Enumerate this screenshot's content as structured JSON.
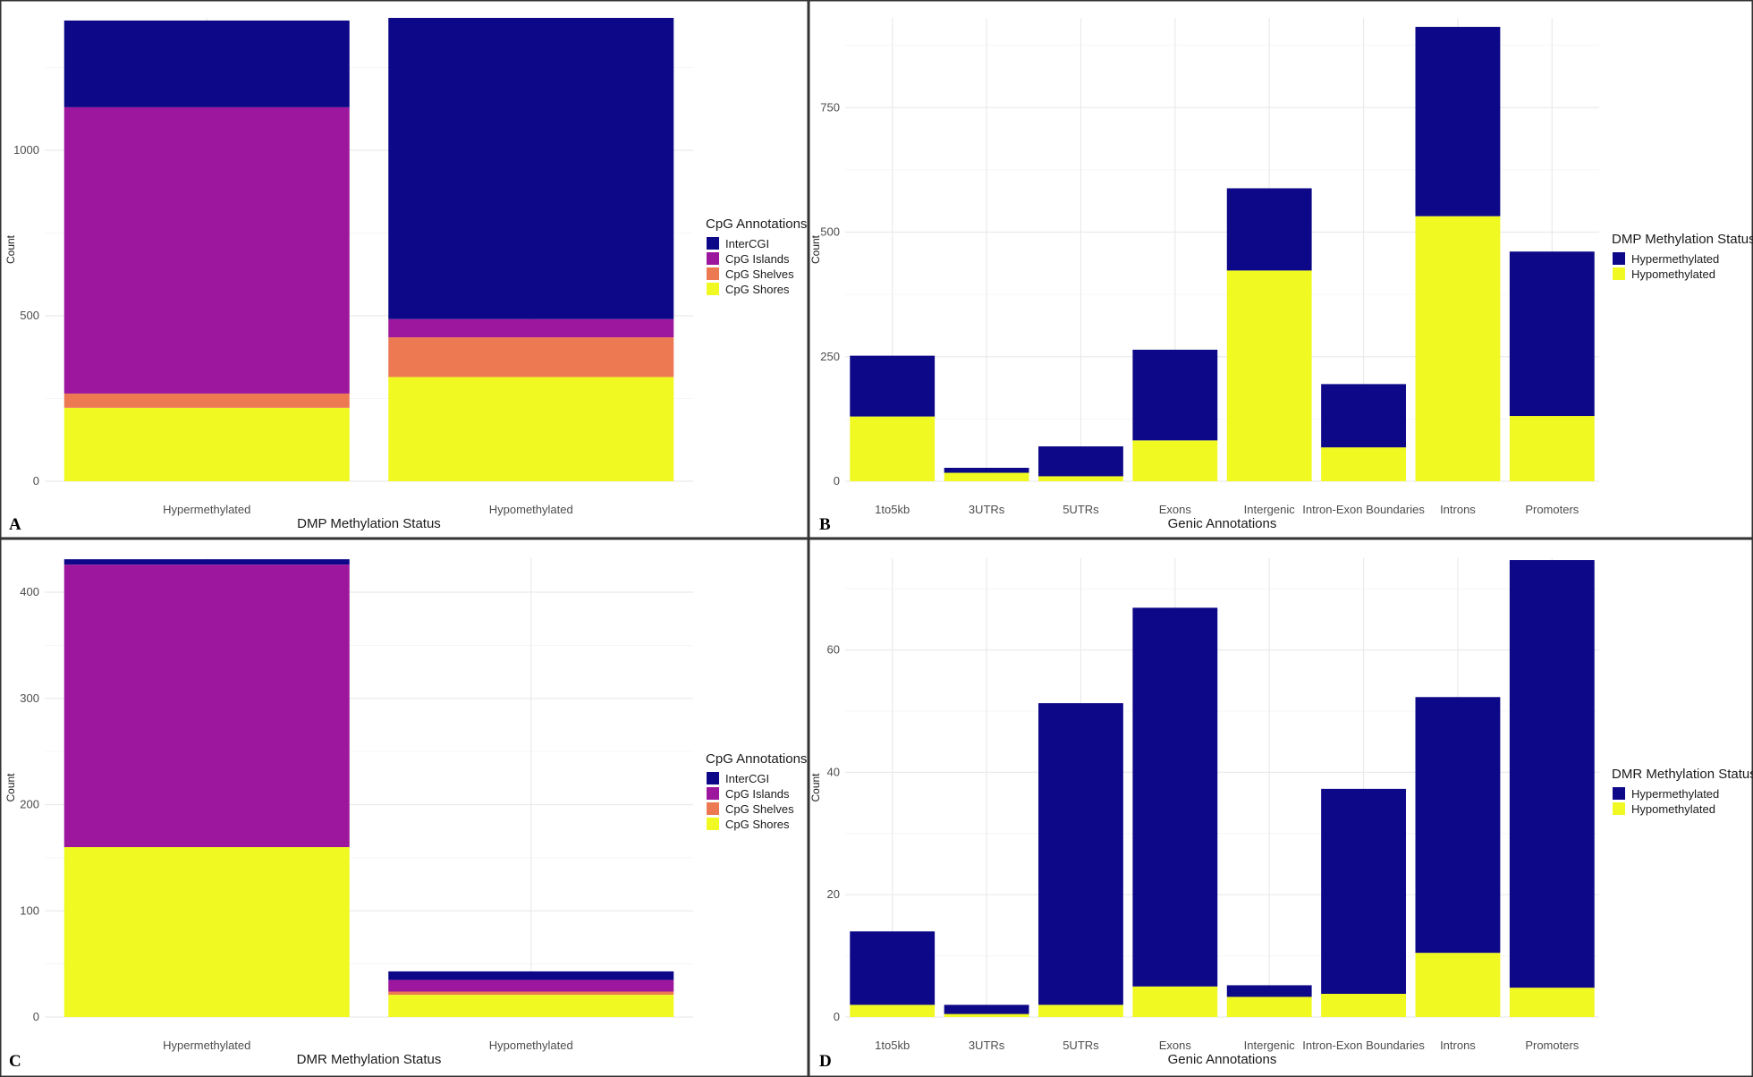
{
  "colors": {
    "InterCGI": "#0d0887",
    "CpG Islands": "#9c179e",
    "CpG Shelves": "#ed7953",
    "CpG Shores": "#f0f921",
    "Hypermethylated": "#0d0887",
    "Hypomethylated": "#f0f921",
    "frame": "#333333"
  },
  "chart_data": [
    {
      "panel_label": "A",
      "type": "bar",
      "stacked": true,
      "title": "",
      "xlabel": "DMP Methylation Status",
      "ylabel": "Count",
      "categories": [
        "Hypermethylated",
        "Hypomethylated"
      ],
      "ylim": [
        0,
        1400
      ],
      "yticks": [
        0,
        500,
        1000
      ],
      "legend_title": "CpG Annotations",
      "legend_position": "right",
      "grid": true,
      "series": [
        {
          "name": "CpG Shores",
          "values": [
            222,
            315
          ]
        },
        {
          "name": "CpG Shelves",
          "values": [
            43,
            120
          ]
        },
        {
          "name": "CpG Islands",
          "values": [
            865,
            55
          ]
        },
        {
          "name": "InterCGI",
          "values": [
            262,
            910
          ]
        }
      ],
      "legend_order": [
        "InterCGI",
        "CpG Islands",
        "CpG Shelves",
        "CpG Shores"
      ]
    },
    {
      "panel_label": "B",
      "type": "bar",
      "stacked": true,
      "title": "",
      "xlabel": "Genic Annotations",
      "ylabel": "Count",
      "categories": [
        "1to5kb",
        "3UTRs",
        "5UTRs",
        "Exons",
        "Intergenic",
        "Intron-Exon Boundaries",
        "Introns",
        "Promoters"
      ],
      "ylim": [
        0,
        930
      ],
      "yticks": [
        0,
        250,
        500,
        750
      ],
      "legend_title": "DMP Methylation Status",
      "legend_position": "right",
      "grid": true,
      "series": [
        {
          "name": "Hypomethylated",
          "values": [
            130,
            17,
            10,
            82,
            423,
            68,
            532,
            131
          ]
        },
        {
          "name": "Hypermethylated",
          "values": [
            122,
            10,
            60,
            182,
            165,
            127,
            380,
            330
          ]
        }
      ],
      "legend_order": [
        "Hypermethylated",
        "Hypomethylated"
      ]
    },
    {
      "panel_label": "C",
      "type": "bar",
      "stacked": true,
      "title": "",
      "xlabel": "DMR Methylation Status",
      "ylabel": "Count",
      "categories": [
        "Hypermethylated",
        "Hypomethylated"
      ],
      "ylim": [
        0,
        432
      ],
      "yticks": [
        0,
        100,
        200,
        300,
        400
      ],
      "legend_title": "CpG Annotations",
      "legend_position": "right",
      "grid": true,
      "series": [
        {
          "name": "CpG Shores",
          "values": [
            160,
            21
          ]
        },
        {
          "name": "CpG Shelves",
          "values": [
            0,
            3
          ]
        },
        {
          "name": "CpG Islands",
          "values": [
            266,
            11
          ]
        },
        {
          "name": "InterCGI",
          "values": [
            5,
            8
          ]
        }
      ],
      "legend_order": [
        "InterCGI",
        "CpG Islands",
        "CpG Shelves",
        "CpG Shores"
      ]
    },
    {
      "panel_label": "D",
      "type": "bar",
      "stacked": true,
      "title": "",
      "xlabel": "Genic Annotations",
      "ylabel": "Count",
      "categories": [
        "1to5kb",
        "3UTRs",
        "5UTRs",
        "Exons",
        "Intergenic",
        "Intron-Exon Boundaries",
        "Introns",
        "Promoters"
      ],
      "ylim": [
        0,
        75
      ],
      "yticks": [
        0,
        20,
        40,
        60
      ],
      "legend_title": "DMR Methylation Status",
      "legend_position": "right",
      "grid": true,
      "series": [
        {
          "name": "Hypomethylated",
          "values": [
            2,
            0.5,
            2,
            5,
            3.3,
            3.8,
            10.5,
            4.8
          ]
        },
        {
          "name": "Hypermethylated",
          "values": [
            12,
            1.5,
            49.3,
            61.9,
            1.9,
            33.5,
            41.8,
            69.9
          ]
        }
      ],
      "legend_order": [
        "Hypermethylated",
        "Hypomethylated"
      ]
    }
  ]
}
